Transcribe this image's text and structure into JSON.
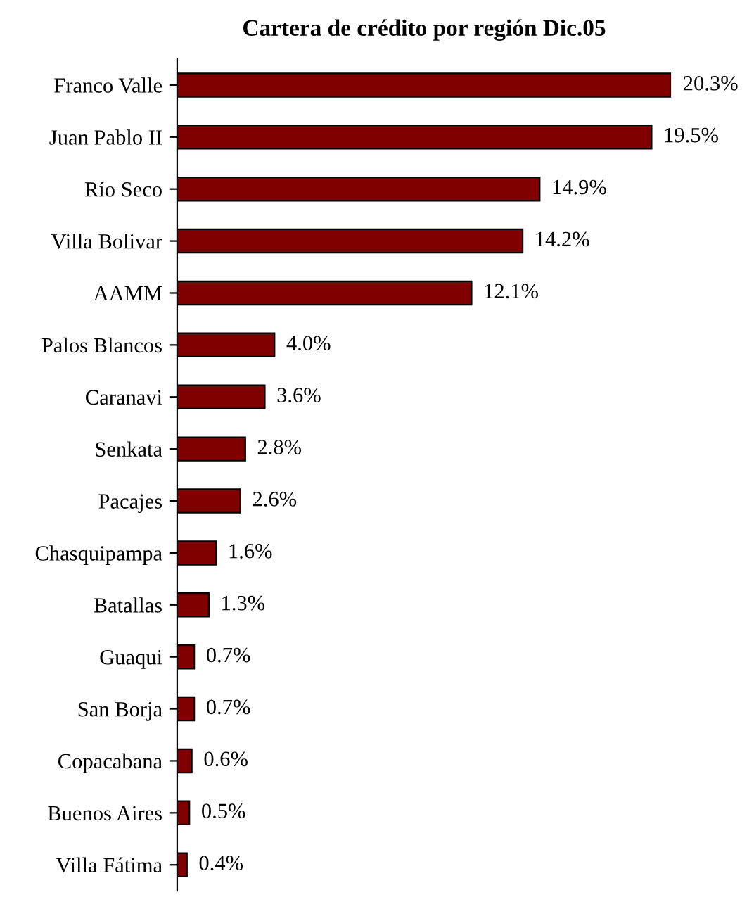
{
  "chart_data": {
    "type": "bar",
    "orientation": "horizontal",
    "title": "Cartera de crédito por región Dic.05",
    "categories": [
      "Franco Valle",
      "Juan Pablo II",
      "Río Seco",
      "Villa Bolivar",
      "AAMM",
      "Palos Blancos",
      "Caranavi",
      "Senkata",
      "Pacajes",
      "Chasquipampa",
      "Batallas",
      "Guaqui",
      "San Borja",
      "Copacabana",
      "Buenos Aires",
      "Villa Fátima"
    ],
    "values": [
      20.3,
      19.5,
      14.9,
      14.2,
      12.1,
      4.0,
      3.6,
      2.8,
      2.6,
      1.6,
      1.3,
      0.7,
      0.7,
      0.6,
      0.5,
      0.4
    ],
    "value_labels": [
      "20.3%",
      "19.5%",
      "14.9%",
      "14.2%",
      "12.1%",
      "4.0%",
      "3.6%",
      "2.8%",
      "2.6%",
      "1.6%",
      "1.3%",
      "0.7%",
      "0.7%",
      "0.6%",
      "0.5%",
      "0.4%"
    ],
    "color": "#800000",
    "grid": false,
    "legend": false
  }
}
